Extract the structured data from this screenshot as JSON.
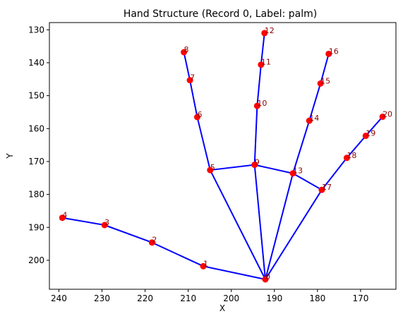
{
  "chart_data": {
    "type": "scatter",
    "title": "Hand Structure (Record 0, Label: palm)",
    "xlabel": "X",
    "ylabel": "Y",
    "xlim": [
      242.2,
      161.8
    ],
    "ylim": [
      208.8,
      127.8
    ],
    "x_inverted": true,
    "y_inverted": true,
    "xticks": [
      240,
      230,
      220,
      210,
      200,
      190,
      180,
      170
    ],
    "yticks": [
      130,
      140,
      150,
      160,
      170,
      180,
      190,
      200
    ],
    "grid": false,
    "colors": {
      "line": "#0000ff",
      "marker": "#ff0000",
      "label": "#8b0000"
    },
    "points": [
      {
        "id": "0",
        "x": 192.1,
        "y": 205.8
      },
      {
        "id": "1",
        "x": 206.5,
        "y": 201.8
      },
      {
        "id": "2",
        "x": 218.4,
        "y": 194.6
      },
      {
        "id": "3",
        "x": 229.4,
        "y": 189.3
      },
      {
        "id": "4",
        "x": 239.2,
        "y": 187.1
      },
      {
        "id": "5",
        "x": 204.9,
        "y": 172.6
      },
      {
        "id": "6",
        "x": 207.9,
        "y": 156.5
      },
      {
        "id": "7",
        "x": 209.6,
        "y": 145.3
      },
      {
        "id": "8",
        "x": 211.0,
        "y": 136.8
      },
      {
        "id": "9",
        "x": 194.6,
        "y": 171.0
      },
      {
        "id": "10",
        "x": 194.0,
        "y": 153.1
      },
      {
        "id": "11",
        "x": 193.1,
        "y": 140.6
      },
      {
        "id": "12",
        "x": 192.3,
        "y": 131.0
      },
      {
        "id": "13",
        "x": 185.7,
        "y": 173.6
      },
      {
        "id": "14",
        "x": 181.9,
        "y": 157.6
      },
      {
        "id": "15",
        "x": 179.3,
        "y": 146.3
      },
      {
        "id": "16",
        "x": 177.4,
        "y": 137.3
      },
      {
        "id": "17",
        "x": 179.0,
        "y": 178.6
      },
      {
        "id": "18",
        "x": 173.2,
        "y": 168.9
      },
      {
        "id": "19",
        "x": 168.8,
        "y": 162.2
      },
      {
        "id": "20",
        "x": 164.9,
        "y": 156.4
      }
    ],
    "connections": [
      [
        0,
        1
      ],
      [
        1,
        2
      ],
      [
        2,
        3
      ],
      [
        3,
        4
      ],
      [
        0,
        5
      ],
      [
        5,
        6
      ],
      [
        6,
        7
      ],
      [
        7,
        8
      ],
      [
        0,
        9
      ],
      [
        9,
        10
      ],
      [
        10,
        11
      ],
      [
        11,
        12
      ],
      [
        0,
        13
      ],
      [
        13,
        14
      ],
      [
        14,
        15
      ],
      [
        15,
        16
      ],
      [
        0,
        17
      ],
      [
        17,
        18
      ],
      [
        18,
        19
      ],
      [
        19,
        20
      ],
      [
        5,
        9
      ],
      [
        9,
        13
      ],
      [
        13,
        17
      ]
    ]
  }
}
